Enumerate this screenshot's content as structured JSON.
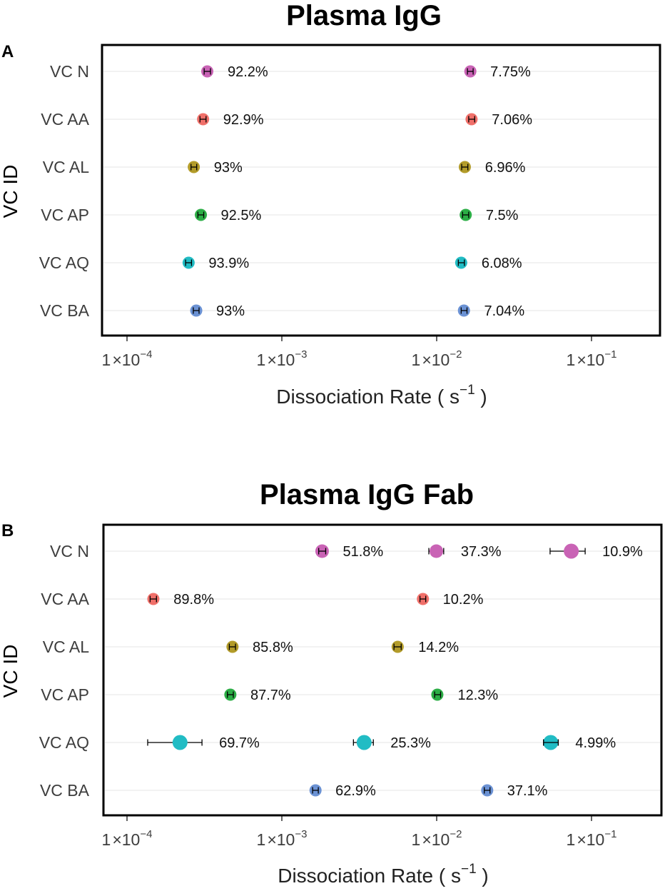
{
  "chart_data": [
    {
      "panel": "A",
      "type": "scatter",
      "title": "Plasma IgG",
      "ylabel": "VC ID",
      "xlabel": "Dissociation Rate ( s",
      "xlabel_exponent": "−1",
      "xlabel_close": " )",
      "xscale": "log",
      "xlim": [
        6e-05,
        0.3
      ],
      "categories": [
        "VC N",
        "VC AA",
        "VC AL",
        "VC AP",
        "VC AQ",
        "VC BA"
      ],
      "xticks": [
        {
          "value": 0.0001,
          "mantissa": "1",
          "times": "×",
          "base": "10",
          "exponent": "−4"
        },
        {
          "value": 0.001,
          "mantissa": "1",
          "times": "×",
          "base": "10",
          "exponent": "−3"
        },
        {
          "value": 0.01,
          "mantissa": "1",
          "times": "×",
          "base": "10",
          "exponent": "−2"
        },
        {
          "value": 0.1,
          "mantissa": "1",
          "times": "×",
          "base": "10",
          "exponent": "−1"
        }
      ],
      "points": [
        {
          "category": "VC N",
          "x": 0.00033,
          "err_low": 0.000315,
          "err_high": 0.000346,
          "label": "92.2%",
          "color": "#c963b5",
          "size": "small"
        },
        {
          "category": "VC N",
          "x": 0.0165,
          "err_low": 0.0158,
          "err_high": 0.0172,
          "label": "7.75%",
          "color": "#c963b5",
          "size": "small"
        },
        {
          "category": "VC AA",
          "x": 0.00031,
          "err_low": 0.000296,
          "err_high": 0.000324,
          "label": "92.9%",
          "color": "#f0706a",
          "size": "small"
        },
        {
          "category": "VC AA",
          "x": 0.0168,
          "err_low": 0.0161,
          "err_high": 0.0176,
          "label": "7.06%",
          "color": "#f0706a",
          "size": "small"
        },
        {
          "category": "VC AL",
          "x": 0.00027,
          "err_low": 0.000259,
          "err_high": 0.000282,
          "label": "93%",
          "color": "#b39c2a",
          "size": "small"
        },
        {
          "category": "VC AL",
          "x": 0.0152,
          "err_low": 0.0145,
          "err_high": 0.0159,
          "label": "6.96%",
          "color": "#b39c2a",
          "size": "small"
        },
        {
          "category": "VC AP",
          "x": 0.0003,
          "err_low": 0.000287,
          "err_high": 0.000313,
          "label": "92.5%",
          "color": "#2cae46",
          "size": "small"
        },
        {
          "category": "VC AP",
          "x": 0.0154,
          "err_low": 0.0147,
          "err_high": 0.0161,
          "label": "7.5%",
          "color": "#2cae46",
          "size": "small"
        },
        {
          "category": "VC AQ",
          "x": 0.00025,
          "err_low": 0.000239,
          "err_high": 0.000261,
          "label": "93.9%",
          "color": "#21bcc4",
          "size": "small"
        },
        {
          "category": "VC AQ",
          "x": 0.0144,
          "err_low": 0.0138,
          "err_high": 0.0151,
          "label": "6.08%",
          "color": "#21bcc4",
          "size": "small"
        },
        {
          "category": "VC BA",
          "x": 0.00028,
          "err_low": 0.000268,
          "err_high": 0.000292,
          "label": "93%",
          "color": "#6b92d4",
          "size": "small"
        },
        {
          "category": "VC BA",
          "x": 0.015,
          "err_low": 0.0144,
          "err_high": 0.0157,
          "label": "7.04%",
          "color": "#6b92d4",
          "size": "small"
        }
      ]
    },
    {
      "panel": "B",
      "type": "scatter",
      "title": "Plasma IgG Fab",
      "ylabel": "VC ID",
      "xlabel": "Dissociation Rate ( s",
      "xlabel_exponent": "−1",
      "xlabel_close": " )",
      "xscale": "log",
      "xlim": [
        6e-05,
        0.3
      ],
      "categories": [
        "VC N",
        "VC AA",
        "VC AL",
        "VC AP",
        "VC AQ",
        "VC BA"
      ],
      "xticks": [
        {
          "value": 0.0001,
          "mantissa": "1",
          "times": "×",
          "base": "10",
          "exponent": "−4"
        },
        {
          "value": 0.001,
          "mantissa": "1",
          "times": "×",
          "base": "10",
          "exponent": "−3"
        },
        {
          "value": 0.01,
          "mantissa": "1",
          "times": "×",
          "base": "10",
          "exponent": "−2"
        },
        {
          "value": 0.1,
          "mantissa": "1",
          "times": "×",
          "base": "10",
          "exponent": "−1"
        }
      ],
      "points": [
        {
          "category": "VC N",
          "x": 0.00182,
          "err_low": 0.00173,
          "err_high": 0.00192,
          "label": "51.8%",
          "color": "#c963b5",
          "size": "medium"
        },
        {
          "category": "VC N",
          "x": 0.00995,
          "err_low": 0.0089,
          "err_high": 0.0111,
          "label": "37.3%",
          "color": "#c963b5",
          "size": "medium"
        },
        {
          "category": "VC N",
          "x": 0.074,
          "err_low": 0.054,
          "err_high": 0.091,
          "label": "10.9%",
          "color": "#c963b5",
          "size": "large"
        },
        {
          "category": "VC AA",
          "x": 0.000148,
          "err_low": 0.000141,
          "err_high": 0.000155,
          "label": "89.8%",
          "color": "#f0706a",
          "size": "small"
        },
        {
          "category": "VC AA",
          "x": 0.00815,
          "err_low": 0.0078,
          "err_high": 0.0085,
          "label": "10.2%",
          "color": "#f0706a",
          "size": "small"
        },
        {
          "category": "VC AL",
          "x": 0.00048,
          "err_low": 0.000458,
          "err_high": 0.000502,
          "label": "85.8%",
          "color": "#b39c2a",
          "size": "small"
        },
        {
          "category": "VC AL",
          "x": 0.0056,
          "err_low": 0.0053,
          "err_high": 0.0059,
          "label": "14.2%",
          "color": "#b39c2a",
          "size": "small"
        },
        {
          "category": "VC AP",
          "x": 0.000465,
          "err_low": 0.000445,
          "err_high": 0.000486,
          "label": "87.7%",
          "color": "#2cae46",
          "size": "small"
        },
        {
          "category": "VC AP",
          "x": 0.0101,
          "err_low": 0.0097,
          "err_high": 0.0106,
          "label": "12.3%",
          "color": "#2cae46",
          "size": "small"
        },
        {
          "category": "VC AQ",
          "x": 0.00022,
          "err_low": 0.000136,
          "err_high": 0.000305,
          "label": "69.7%",
          "color": "#21bcc4",
          "size": "large"
        },
        {
          "category": "VC AQ",
          "x": 0.0034,
          "err_low": 0.0029,
          "err_high": 0.0039,
          "label": "25.3%",
          "color": "#21bcc4",
          "size": "large"
        },
        {
          "category": "VC AQ",
          "x": 0.0545,
          "err_low": 0.049,
          "err_high": 0.061,
          "label": "4.99%",
          "color": "#21bcc4",
          "size": "large"
        },
        {
          "category": "VC BA",
          "x": 0.00165,
          "err_low": 0.00158,
          "err_high": 0.00172,
          "label": "62.9%",
          "color": "#6b92d4",
          "size": "small"
        },
        {
          "category": "VC BA",
          "x": 0.0212,
          "err_low": 0.0203,
          "err_high": 0.0221,
          "label": "37.1%",
          "color": "#6b92d4",
          "size": "small"
        }
      ]
    }
  ]
}
